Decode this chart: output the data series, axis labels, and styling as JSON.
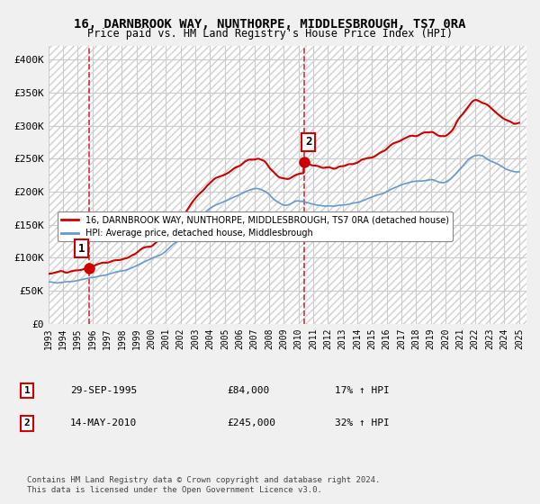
{
  "title": "16, DARNBROOK WAY, NUNTHORPE, MIDDLESBROUGH, TS7 0RA",
  "subtitle": "Price paid vs. HM Land Registry's House Price Index (HPI)",
  "bg_color": "#f0f0f0",
  "plot_bg_color": "#ffffff",
  "hatch_color": "#cccccc",
  "grid_color": "#cccccc",
  "red_line_color": "#cc0000",
  "blue_line_color": "#6699cc",
  "dashed_line_color": "#cc0000",
  "purchase1": {
    "date": 1995.75,
    "price": 84000,
    "label": "1",
    "pct": "17%",
    "date_str": "29-SEP-1995"
  },
  "purchase2": {
    "date": 2010.37,
    "price": 245000,
    "label": "2",
    "pct": "32%",
    "date_str": "14-MAY-2010"
  },
  "ylim": [
    0,
    420000
  ],
  "xlim_start": 1993,
  "xlim_end": 2025.5,
  "yticks": [
    0,
    50000,
    100000,
    150000,
    200000,
    250000,
    300000,
    350000,
    400000
  ],
  "ytick_labels": [
    "£0",
    "£50K",
    "£100K",
    "£150K",
    "£200K",
    "£250K",
    "£300K",
    "£350K",
    "£400K"
  ],
  "xticks": [
    1993,
    1994,
    1995,
    1996,
    1997,
    1998,
    1999,
    2000,
    2001,
    2002,
    2003,
    2004,
    2005,
    2006,
    2007,
    2008,
    2009,
    2010,
    2011,
    2012,
    2013,
    2014,
    2015,
    2016,
    2017,
    2018,
    2019,
    2020,
    2021,
    2022,
    2023,
    2024,
    2025
  ],
  "legend_label1": "16, DARNBROOK WAY, NUNTHORPE, MIDDLESBROUGH, TS7 0RA (detached house)",
  "legend_label2": "HPI: Average price, detached house, Middlesbrough",
  "footer": "Contains HM Land Registry data © Crown copyright and database right 2024.\nThis data is licensed under the Open Government Licence v3.0."
}
